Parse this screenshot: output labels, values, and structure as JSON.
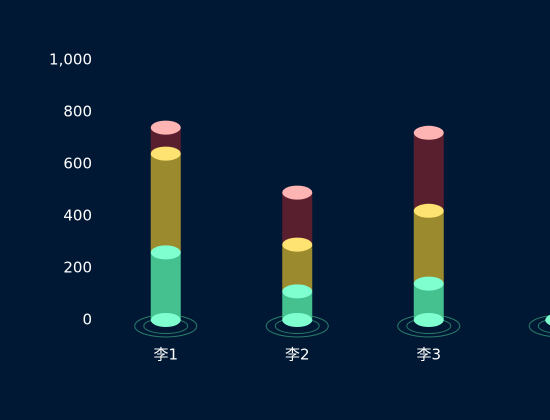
{
  "chart_data": {
    "type": "bar3d_stacked",
    "categories": [
      "李1",
      "李2",
      "李3",
      null
    ],
    "series": [
      {
        "color": "#45c08f",
        "cap_color": "#7fffd0",
        "values": [
          260,
          110,
          140,
          null
        ]
      },
      {
        "color": "#9c8b2e",
        "cap_color": "#ffe372",
        "values": [
          380,
          180,
          280,
          null
        ]
      },
      {
        "color": "#5a1f2e",
        "cap_color": "#ffb4b4",
        "values": [
          100,
          200,
          300,
          null
        ]
      }
    ],
    "ylim": [
      0,
      1000
    ],
    "yticks": [
      0,
      200,
      400,
      600,
      800,
      {
        "value": 1000,
        "label": "1,000"
      }
    ],
    "background": "#001834"
  }
}
